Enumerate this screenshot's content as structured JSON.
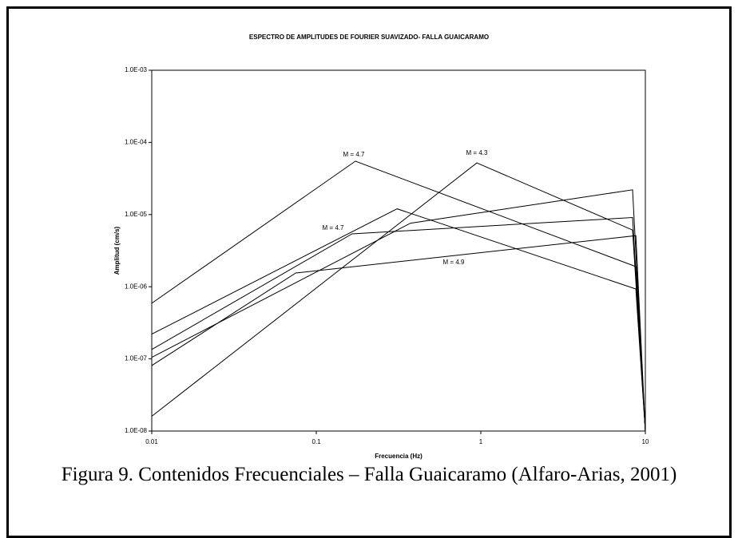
{
  "chart_data": {
    "type": "line",
    "title": "ESPECTRO DE AMPLITUDES DE FOURIER SUAVIZADO- FALLA GUAICARAMO",
    "x_label": "Frecuencia (Hz)",
    "y_label": "Amplitud (cm/s)",
    "xlog": true,
    "ylog": true,
    "xlim": [
      0.01,
      10
    ],
    "ylim": [
      1e-08,
      0.001
    ],
    "xticks": [
      0.01,
      0.1,
      1,
      10
    ],
    "yticks": [
      {
        "value": 1e-08,
        "label": "1.0E-08"
      },
      {
        "value": 1e-07,
        "label": "1.0E-07"
      },
      {
        "value": 1e-06,
        "label": "1.0E-06"
      },
      {
        "value": 1e-05,
        "label": "1.0E-05"
      },
      {
        "value": 0.0001,
        "label": "1.0E-04"
      },
      {
        "value": 0.001,
        "label": "1.0E-03"
      }
    ],
    "color": "#000000",
    "series": [
      {
        "x": [
          0.01,
          0.173,
          8.75,
          10
        ],
        "values": [
          5.9e-07,
          5.5e-05,
          1.9e-06,
          1e-08
        ]
      },
      {
        "x": [
          0.01,
          0.946,
          8.36,
          10
        ],
        "values": [
          1.6e-08,
          5.2e-05,
          6.1e-06,
          1e-08
        ]
      },
      {
        "x": [
          0.01,
          0.31,
          8.75,
          10
        ],
        "values": [
          2.2e-07,
          1.2e-05,
          9.3e-07,
          1e-08
        ]
      },
      {
        "x": [
          0.01,
          0.165,
          8.36,
          10
        ],
        "values": [
          1.35e-07,
          5.4e-06,
          9.1e-06,
          1e-08
        ]
      },
      {
        "x": [
          0.01,
          0.374,
          8.36,
          10
        ],
        "values": [
          1.05e-07,
          7.6e-06,
          2.2e-05,
          1e-08
        ]
      },
      {
        "x": [
          0.01,
          0.075,
          8.75,
          10
        ],
        "values": [
          8.1e-08,
          1.55e-06,
          5.1e-06,
          1e-08
        ]
      }
    ],
    "annotations": [
      "M = 4.7",
      "M = 4.3",
      "M = 4.7",
      "M = 4.9"
    ]
  },
  "caption": "Figura 9. Contenidos Frecuenciales – Falla Guaicaramo (Alfaro-Arias, 2001)"
}
